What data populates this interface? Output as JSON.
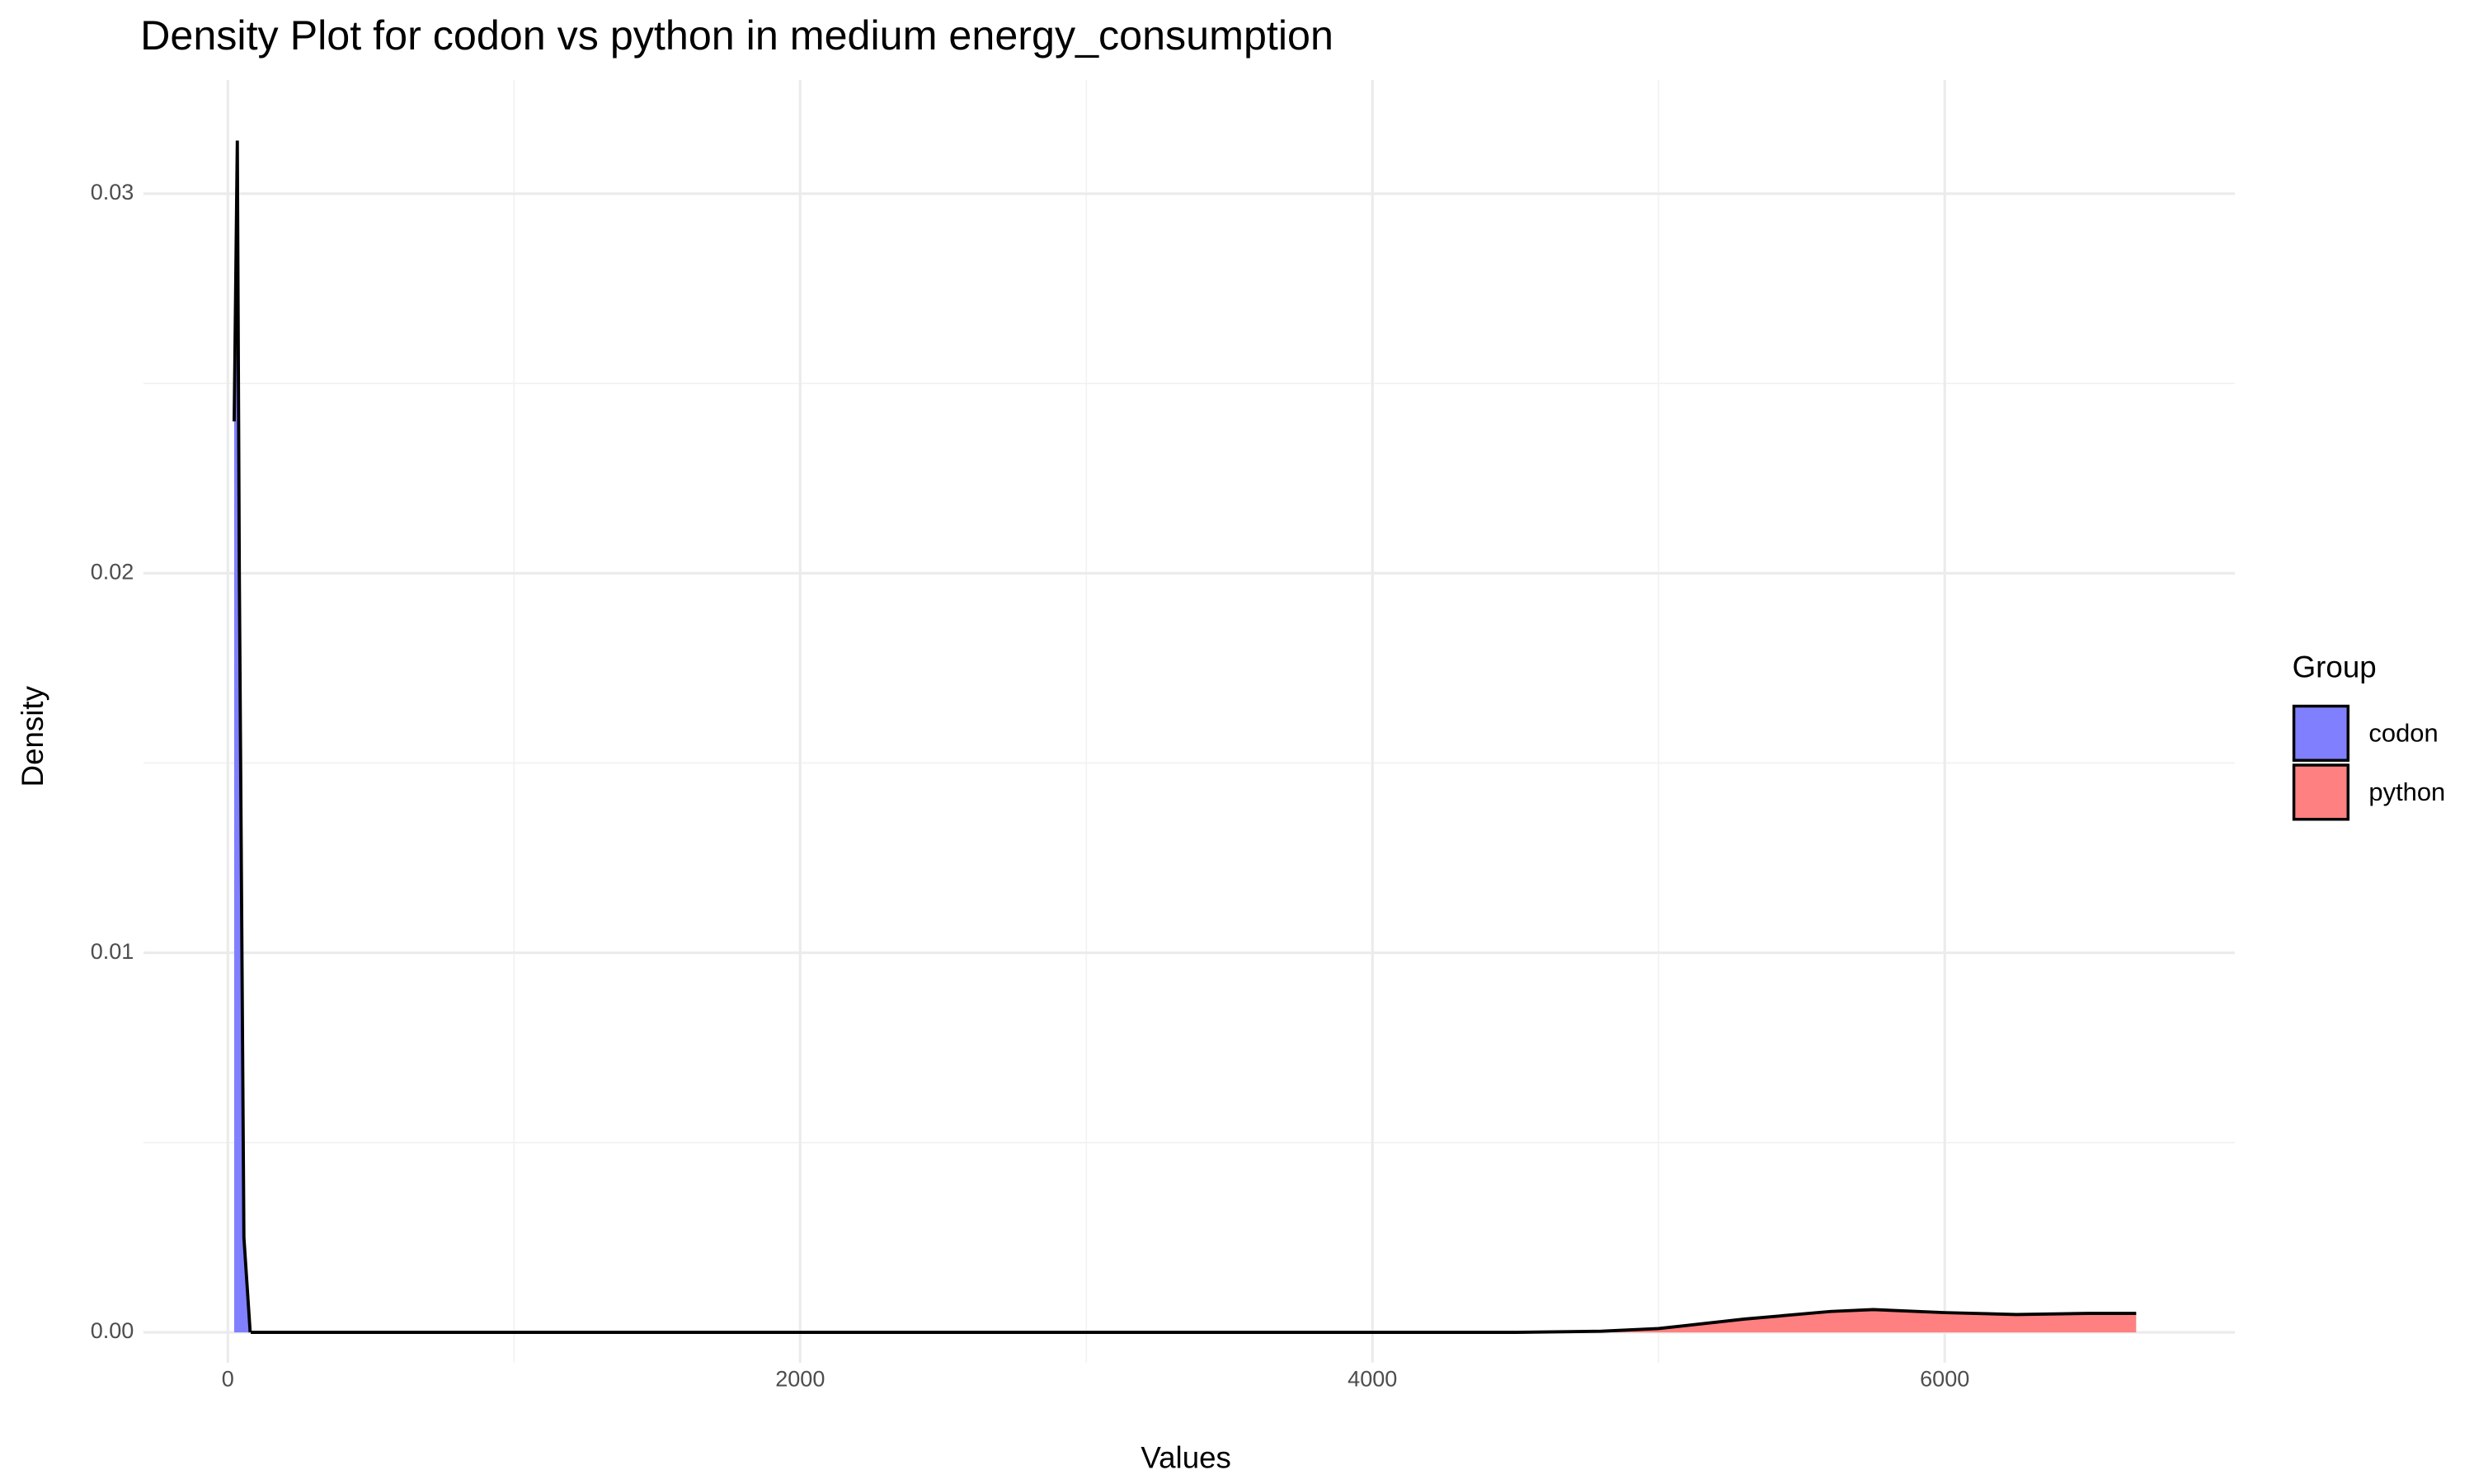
{
  "chart_data": {
    "type": "density",
    "title": "Density Plot for codon vs python in medium energy_consumption",
    "x_label": "Values",
    "y_label": "Density",
    "legend_title": "Group",
    "legend_position": "right",
    "grid": true,
    "xlim": [
      -295,
      7014
    ],
    "ylim": [
      -0.0008,
      0.033
    ],
    "xticks": [
      0,
      2000,
      4000,
      6000
    ],
    "yticks": [
      {
        "value": 0,
        "label": "0.00"
      },
      0.01,
      0.02,
      0.03
    ],
    "x_minor_ticks": [
      1000,
      3000,
      5000
    ],
    "y_minor_ticks": [
      0.005,
      0.015,
      0.025
    ],
    "series": [
      {
        "name": "codon",
        "color": "#8080ff",
        "x": [
          22,
          33,
          40,
          56,
          78
        ],
        "values": [
          0.024,
          0.0314,
          0.02,
          0.0025,
          0
        ]
      },
      {
        "name": "python",
        "color": "#ff8080",
        "x": [
          80,
          4500,
          4800,
          5000,
          5300,
          5600,
          5750,
          6000,
          6250,
          6500,
          6669
        ],
        "values": [
          0,
          0,
          3e-05,
          0.0001,
          0.00035,
          0.00055,
          0.0006,
          0.00052,
          0.00047,
          0.0005,
          0.0005
        ]
      }
    ]
  }
}
